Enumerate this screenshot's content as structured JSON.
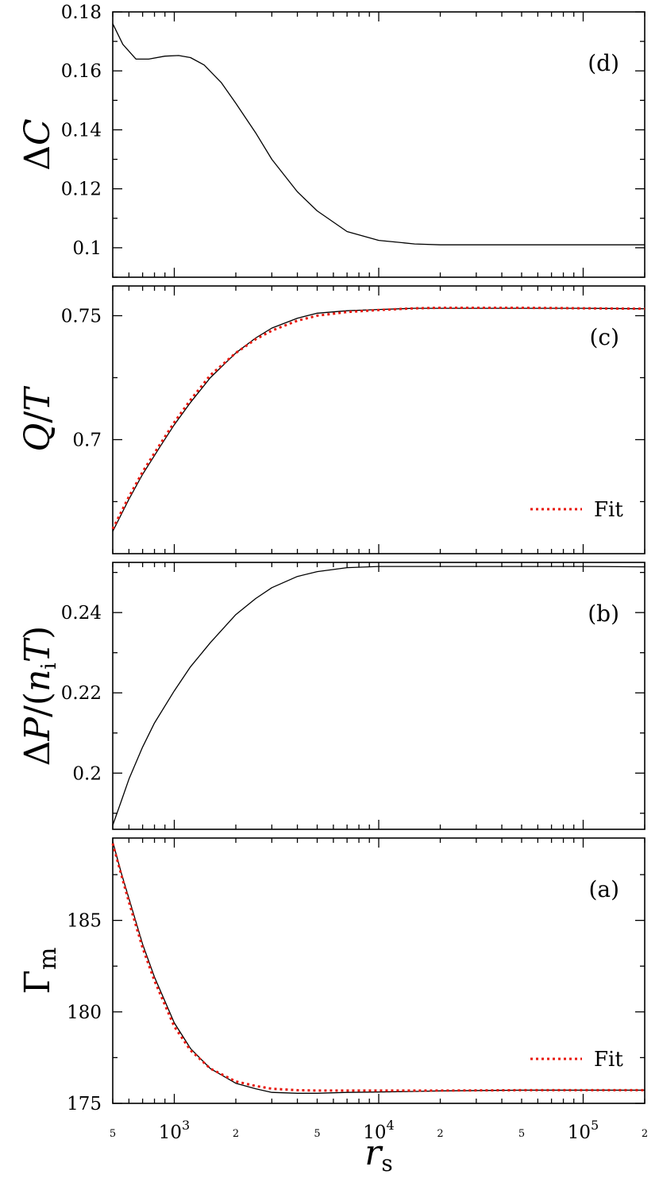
{
  "chart_data": [
    {
      "id": "d",
      "type": "line",
      "panel_label": "(d)",
      "ylabel": "ΔC",
      "xscale": "log",
      "xlim": [
        500,
        200000
      ],
      "ylim": [
        0.09,
        0.18
      ],
      "yticks": [
        0.1,
        0.12,
        0.14,
        0.16,
        0.18
      ],
      "ytick_labels": [
        "0.1",
        "0.12",
        "0.14",
        "0.16",
        "0.18"
      ],
      "series": [
        {
          "style": "solid",
          "color": "#000000",
          "x": [
            500,
            560,
            650,
            750,
            900,
            1050,
            1200,
            1400,
            1700,
            2000,
            2500,
            3000,
            4000,
            5000,
            7000,
            10000,
            15000,
            20000,
            50000,
            100000,
            200000
          ],
          "y": [
            0.176,
            0.169,
            0.164,
            0.164,
            0.165,
            0.1652,
            0.1645,
            0.162,
            0.156,
            0.149,
            0.139,
            0.13,
            0.119,
            0.1125,
            0.1055,
            0.1025,
            0.1013,
            0.101,
            0.101,
            0.101,
            0.101
          ]
        }
      ]
    },
    {
      "id": "c",
      "type": "line",
      "panel_label": "(c)",
      "ylabel": "Q/T",
      "xscale": "log",
      "xlim": [
        500,
        200000
      ],
      "ylim": [
        0.654,
        0.762
      ],
      "yticks": [
        0.7,
        0.75
      ],
      "ytick_labels": [
        "0.7",
        "0.75"
      ],
      "legend": {
        "label": "Fit",
        "position": "lower-right"
      },
      "series": [
        {
          "style": "solid",
          "color": "#000000",
          "x": [
            500,
            600,
            700,
            850,
            1000,
            1200,
            1500,
            2000,
            2500,
            3000,
            4000,
            5000,
            7000,
            10000,
            15000,
            20000,
            50000,
            100000,
            200000
          ],
          "y": [
            0.663,
            0.676,
            0.686,
            0.697,
            0.706,
            0.715,
            0.725,
            0.735,
            0.741,
            0.745,
            0.749,
            0.751,
            0.752,
            0.7525,
            0.753,
            0.753,
            0.753,
            0.753,
            0.7528
          ]
        },
        {
          "name": "Fit",
          "style": "dotted",
          "color": "#e8160c",
          "x": [
            500,
            600,
            700,
            850,
            1000,
            1200,
            1500,
            2000,
            2500,
            3000,
            4000,
            5000,
            7000,
            10000,
            15000,
            20000,
            50000,
            100000,
            200000
          ],
          "y": [
            0.664,
            0.677,
            0.687,
            0.698,
            0.707,
            0.716,
            0.726,
            0.735,
            0.7405,
            0.744,
            0.748,
            0.75,
            0.7515,
            0.7523,
            0.753,
            0.7532,
            0.7532,
            0.753,
            0.7528
          ]
        }
      ]
    },
    {
      "id": "b",
      "type": "line",
      "panel_label": "(b)",
      "ylabel": "ΔP/(n_i T)",
      "xscale": "log",
      "xlim": [
        500,
        200000
      ],
      "ylim": [
        0.186,
        0.2525
      ],
      "yticks": [
        0.2,
        0.22,
        0.24
      ],
      "ytick_labels": [
        "0.2",
        "0.22",
        "0.24"
      ],
      "series": [
        {
          "style": "solid",
          "color": "#000000",
          "x": [
            500,
            550,
            600,
            700,
            800,
            1000,
            1200,
            1500,
            2000,
            2500,
            3000,
            4000,
            5000,
            7000,
            10000,
            15000,
            20000,
            50000,
            100000,
            200000
          ],
          "y": [
            0.187,
            0.193,
            0.1985,
            0.2065,
            0.2125,
            0.2205,
            0.2265,
            0.2325,
            0.2395,
            0.2435,
            0.2462,
            0.249,
            0.2502,
            0.2512,
            0.2515,
            0.2515,
            0.2515,
            0.2515,
            0.2515,
            0.2514
          ]
        }
      ]
    },
    {
      "id": "a",
      "type": "line",
      "panel_label": "(a)",
      "ylabel": "Γ_m",
      "xscale": "log",
      "xlim": [
        500,
        200000
      ],
      "ylim": [
        175,
        189.5
      ],
      "yticks": [
        175,
        180,
        185
      ],
      "ytick_labels": [
        "175",
        "180",
        "185"
      ],
      "xticks_major": [
        1000,
        10000,
        100000
      ],
      "xtick_labels_major": [
        "10^3",
        "10^4",
        "10^5"
      ],
      "xticks_minor_labeled": [
        500,
        2000,
        5000,
        20000,
        50000,
        200000
      ],
      "xtick_labels_minor": [
        "5",
        "2",
        "5",
        "2",
        "5",
        "2"
      ],
      "xlabel": "r_s",
      "legend": {
        "label": "Fit",
        "position": "lower-right"
      },
      "series": [
        {
          "style": "solid",
          "color": "#000000",
          "x": [
            500,
            550,
            600,
            700,
            800,
            1000,
            1200,
            1500,
            2000,
            2500,
            3000,
            4000,
            5000,
            7000,
            10000,
            15000,
            20000,
            50000,
            100000,
            200000
          ],
          "y": [
            189.3,
            187.6,
            186.2,
            183.7,
            181.9,
            179.4,
            178.0,
            176.9,
            176.1,
            175.8,
            175.6,
            175.55,
            175.55,
            175.6,
            175.62,
            175.65,
            175.68,
            175.72,
            175.72,
            175.72
          ]
        },
        {
          "name": "Fit",
          "style": "dotted",
          "color": "#e8160c",
          "x": [
            500,
            550,
            600,
            700,
            800,
            1000,
            1200,
            1500,
            2000,
            2500,
            3000,
            4000,
            5000,
            7000,
            10000,
            15000,
            20000,
            50000,
            100000,
            200000
          ],
          "y": [
            189.2,
            187.5,
            186.0,
            183.5,
            181.7,
            179.2,
            177.9,
            176.9,
            176.2,
            175.95,
            175.8,
            175.72,
            175.7,
            175.7,
            175.7,
            175.7,
            175.7,
            175.72,
            175.72,
            175.72
          ]
        }
      ]
    }
  ]
}
